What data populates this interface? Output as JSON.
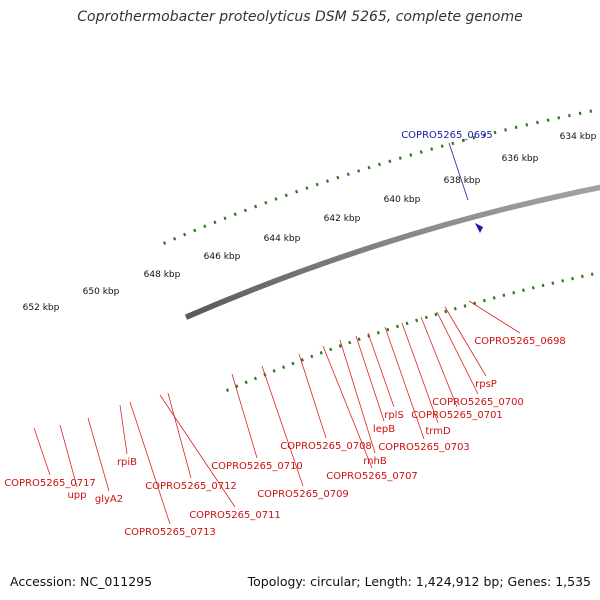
{
  "title": "Coprothermobacter proteolyticus DSM 5265, complete genome",
  "footer": {
    "accession": "Accession: NC_011295",
    "topology": "Topology: circular; Length: 1,424,912 bp; Genes: 1,535"
  },
  "ticks": [
    "634 kbp",
    "636 kbp",
    "638 kbp",
    "640 kbp",
    "642 kbp",
    "644 kbp",
    "646 kbp",
    "648 kbp",
    "650 kbp",
    "652 kbp"
  ],
  "selected_gene": "COPRO5265_0695",
  "gene_labels": [
    "COPRO5265_0698",
    "rpsP",
    "COPRO5265_0700",
    "COPRO5265_0701",
    "trmD",
    "COPRO5265_0703",
    "rplS",
    "lepB",
    "rnhB",
    "COPRO5265_0707",
    "COPRO5265_0708",
    "COPRO5265_0709",
    "COPRO5265_0710",
    "COPRO5265_0711",
    "COPRO5265_0712",
    "COPRO5265_0713",
    "rpiB",
    "glyA2",
    "upp",
    "COPRO5265_0717"
  ],
  "colors": {
    "genome": "#808080",
    "gene_forward": "#ee1111",
    "label": "#cc1111",
    "selected": "#1a1aaa",
    "ticks": "#2a7a1a"
  }
}
